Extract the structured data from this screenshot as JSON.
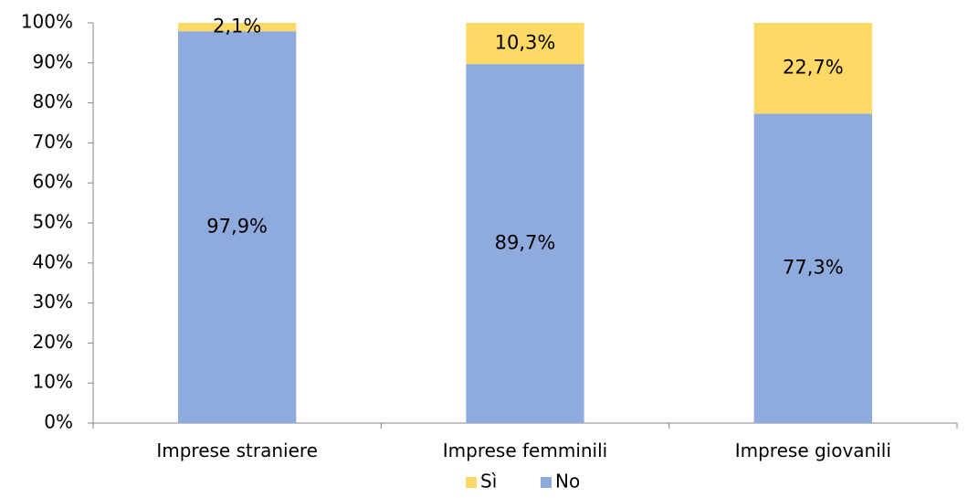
{
  "chart_data": {
    "type": "bar",
    "stacked": true,
    "categories": [
      "Imprese straniere",
      "Imprese femminili",
      "Imprese giovanili"
    ],
    "series": [
      {
        "name": "No",
        "values": [
          97.9,
          89.7,
          77.3
        ],
        "labels": [
          "97,9%",
          "89,7%",
          "77,3%"
        ],
        "color": "#8FAADC"
      },
      {
        "name": "Sì",
        "values": [
          2.1,
          10.3,
          22.7
        ],
        "labels": [
          "2,1%",
          "10,3%",
          "22,7%"
        ],
        "color": "#FFD966"
      }
    ],
    "y_ticks": [
      "0%",
      "10%",
      "20%",
      "30%",
      "40%",
      "50%",
      "60%",
      "70%",
      "80%",
      "90%",
      "100%"
    ],
    "ylim": [
      0,
      100
    ],
    "legend": {
      "position": "bottom",
      "entries": [
        "Sì",
        "No"
      ]
    },
    "grid": false
  }
}
